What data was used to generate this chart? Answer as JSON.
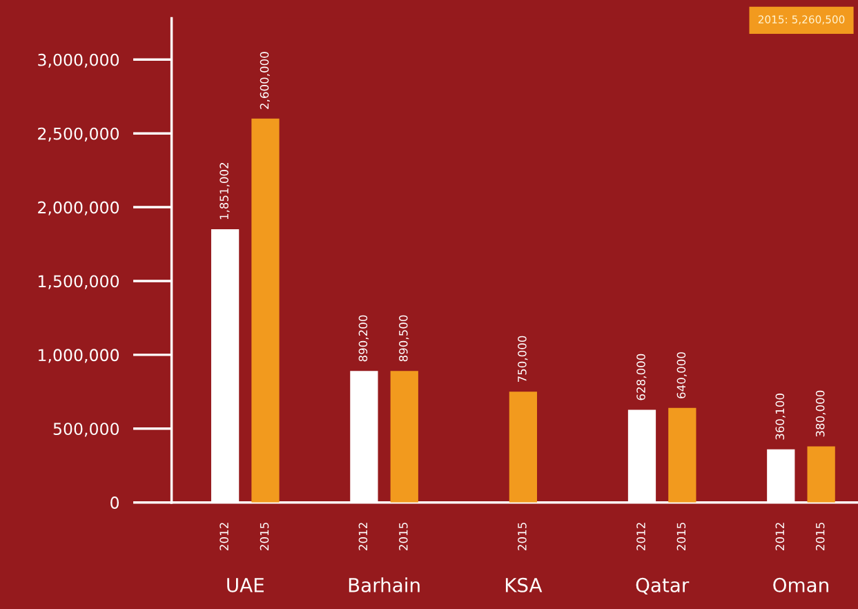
{
  "chart_data": {
    "type": "bar",
    "categories": [
      "UAE",
      "Barhain",
      "KSA",
      "Qatar",
      "Oman"
    ],
    "series": [
      {
        "name": "2012",
        "color": "#ffffff",
        "values": [
          1851002,
          890200,
          null,
          628000,
          360100
        ],
        "value_labels": [
          "1,851,002",
          "890,200",
          null,
          "628,000",
          "360,100"
        ]
      },
      {
        "name": "2015",
        "color": "#f29a1e",
        "values": [
          2600000,
          890500,
          750000,
          640000,
          380000
        ],
        "value_labels": [
          "2,600,000",
          "890,500",
          "750,000",
          "640,000",
          "380,000"
        ]
      }
    ],
    "ylim": [
      0,
      3280000
    ],
    "yticks": [
      {
        "value": 0,
        "label": "0"
      },
      {
        "value": 500000,
        "label": "500,000"
      },
      {
        "value": 1000000,
        "label": "1,000,000"
      },
      {
        "value": 1500000,
        "label": "1,500,000"
      },
      {
        "value": 2000000,
        "label": "2,000,000"
      },
      {
        "value": 2500000,
        "label": "2,500,000"
      },
      {
        "value": 3000000,
        "label": "3,000,000"
      }
    ],
    "grid": false,
    "legend": false,
    "annotations": [
      "2015: 5,260,500"
    ]
  }
}
